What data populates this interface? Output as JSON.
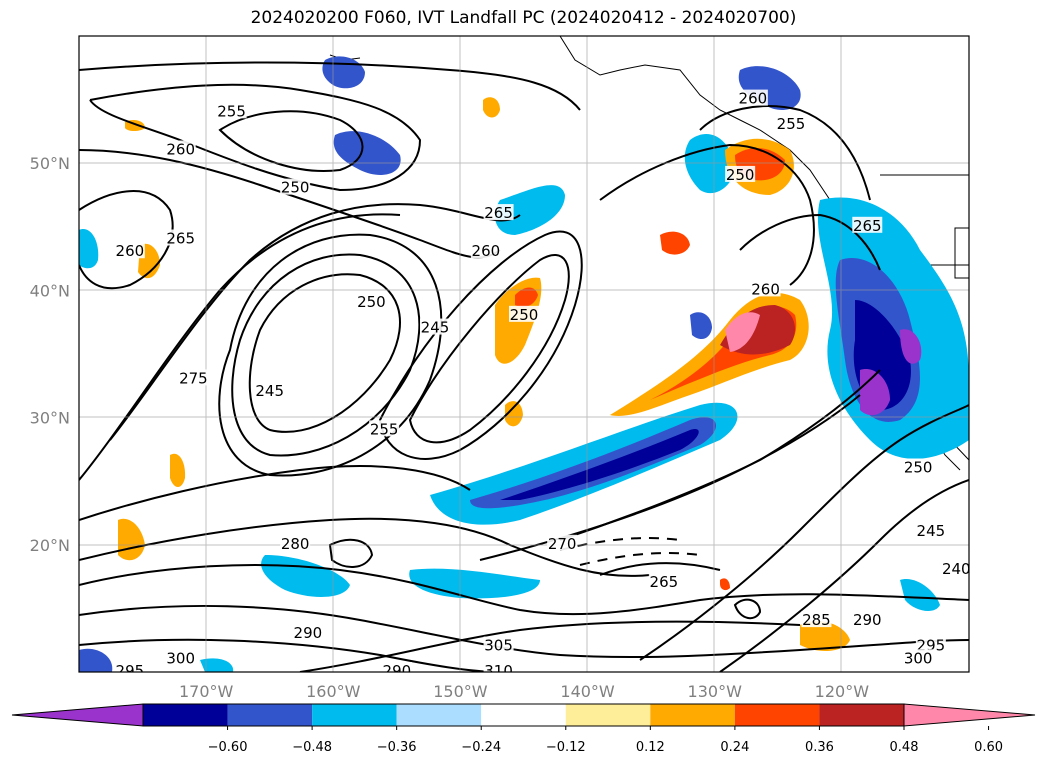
{
  "title": "2024020200 F060, IVT Landfall PC (2024020412 - 2024020700)",
  "latitudes": [
    {
      "label": "50°N",
      "lat": 50
    },
    {
      "label": "40°N",
      "lat": 40
    },
    {
      "label": "30°N",
      "lat": 30
    },
    {
      "label": "20°N",
      "lat": 20
    }
  ],
  "longitudes": [
    {
      "label": "170°W",
      "lon": -170
    },
    {
      "label": "160°W",
      "lon": -160
    },
    {
      "label": "150°W",
      "lon": -150
    },
    {
      "label": "140°W",
      "lon": -140
    },
    {
      "label": "130°W",
      "lon": -130
    },
    {
      "label": "120°W",
      "lon": -120
    }
  ],
  "colorbar": {
    "colors": [
      "#9933cc",
      "#000099",
      "#3355cc",
      "#00bbee",
      "#aaddff",
      "#ffffff",
      "#ffee99",
      "#ffaa00",
      "#ff4400",
      "#bb2222",
      "#ff88aa"
    ],
    "tick_labels": [
      "−0.60",
      "−0.48",
      "−0.36",
      "−0.24",
      "−0.12",
      "0.12",
      "0.24",
      "0.36",
      "0.48",
      "0.60"
    ]
  },
  "contour_labels": [
    {
      "text": "255",
      "lon": -168,
      "lat": 54
    },
    {
      "text": "260",
      "lon": -172,
      "lat": 51
    },
    {
      "text": "250",
      "lon": -163,
      "lat": 48
    },
    {
      "text": "260",
      "lon": -176,
      "lat": 43
    },
    {
      "text": "265",
      "lon": -172,
      "lat": 44
    },
    {
      "text": "265",
      "lon": -147,
      "lat": 46
    },
    {
      "text": "260",
      "lon": -148,
      "lat": 43
    },
    {
      "text": "250",
      "lon": -157,
      "lat": 39
    },
    {
      "text": "245",
      "lon": -152,
      "lat": 37
    },
    {
      "text": "250",
      "lon": -145,
      "lat": 38
    },
    {
      "text": "275",
      "lon": -171,
      "lat": 33
    },
    {
      "text": "245",
      "lon": -165,
      "lat": 32
    },
    {
      "text": "255",
      "lon": -156,
      "lat": 29
    },
    {
      "text": "260",
      "lon": -126,
      "lat": 40
    },
    {
      "text": "260",
      "lon": -127,
      "lat": 55
    },
    {
      "text": "255",
      "lon": -124,
      "lat": 53
    },
    {
      "text": "250",
      "lon": -128,
      "lat": 49
    },
    {
      "text": "265",
      "lon": -118,
      "lat": 45
    },
    {
      "text": "250",
      "lon": -114,
      "lat": 26
    },
    {
      "text": "245",
      "lon": -113,
      "lat": 21
    },
    {
      "text": "240",
      "lon": -111,
      "lat": 18
    },
    {
      "text": "280",
      "lon": -163,
      "lat": 20
    },
    {
      "text": "270",
      "lon": -142,
      "lat": 20
    },
    {
      "text": "265",
      "lon": -134,
      "lat": 17
    },
    {
      "text": "290",
      "lon": -162,
      "lat": 13
    },
    {
      "text": "300",
      "lon": -172,
      "lat": 11
    },
    {
      "text": "295",
      "lon": -176,
      "lat": 10
    },
    {
      "text": "290",
      "lon": -155,
      "lat": 10
    },
    {
      "text": "285",
      "lon": -122,
      "lat": 14
    },
    {
      "text": "290",
      "lon": -118,
      "lat": 14
    },
    {
      "text": "295",
      "lon": -113,
      "lat": 12
    },
    {
      "text": "300",
      "lon": -114,
      "lat": 11
    },
    {
      "text": "305",
      "lon": -147,
      "lat": 12
    },
    {
      "text": "310",
      "lon": -147,
      "lat": 10
    }
  ]
}
